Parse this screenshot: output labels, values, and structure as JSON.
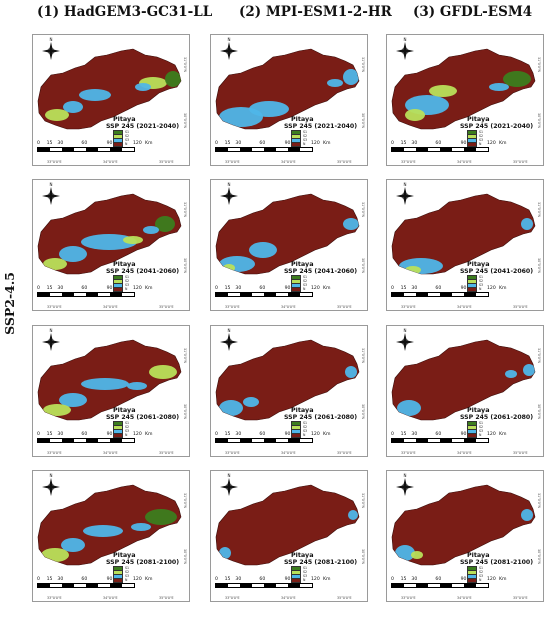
{
  "row_label": "SSP2-4.5",
  "columns": [
    {
      "title": "(1) HadGEM3-GC31-LL"
    },
    {
      "title": "(2) MPI-ESM1-2-HR"
    },
    {
      "title": "(3) GFDL-ESM4"
    }
  ],
  "species": "Pitaya",
  "periods": [
    "SSP 245 (2021-2040)",
    "SSP 245 (2041-2060)",
    "SSP 245 (2061-2080)",
    "SSP 245 (2081-2100)"
  ],
  "legend_classes": [
    {
      "label": "S1",
      "color": "#3c7d1e"
    },
    {
      "label": "S2",
      "color": "#b9e05a"
    },
    {
      "label": "S3",
      "color": "#4fb6e8"
    },
    {
      "label": "N",
      "color": "#7a1d16"
    }
  ],
  "scale": {
    "ticks": [
      "0",
      "15",
      "30",
      "60",
      "90",
      "120"
    ],
    "unit": "Km"
  },
  "lon_labels": [
    "33°0'0\"E",
    "34°0'0\"E",
    "35°0'0\"E"
  ],
  "lat_labels": [
    "31°0'0\"N",
    "30°0'0\"N"
  ],
  "north_label": "N"
}
